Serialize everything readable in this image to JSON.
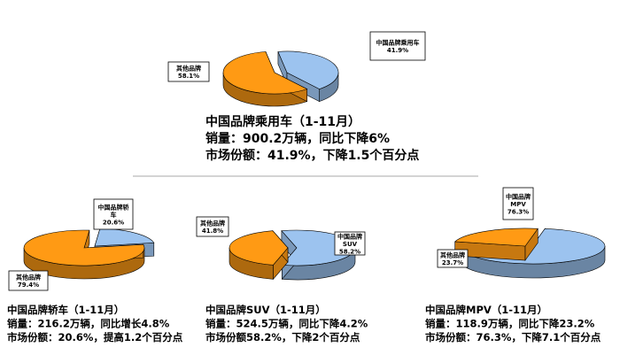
{
  "chart_data": [
    {
      "type": "pie",
      "categories": [
        "中国品牌乘用车",
        "其他品牌"
      ],
      "values": [
        41.9,
        58.1
      ],
      "data_labels": [
        "41.9%",
        "58.1%"
      ],
      "unit": "%",
      "colors": [
        "#9cc3ef",
        "#ff9a14"
      ],
      "caption": [
        "中国品牌乘用车（1-11月）",
        "销量：900.2万辆，同比下降6%",
        "市场份额：41.9%，下降1.5个百分点"
      ]
    },
    {
      "type": "pie",
      "categories": [
        "中国品牌轿车",
        "其他品牌"
      ],
      "values": [
        20.6,
        79.4
      ],
      "data_labels": [
        "20.6%",
        "79.4%"
      ],
      "unit": "%",
      "colors": [
        "#9cc3ef",
        "#ff9a14"
      ],
      "caption": [
        "中国品牌轿车（1-11月）",
        "销量：216.2万辆，同比增长4.8%",
        "市场份额：20.6%，提高1.2个百分点"
      ]
    },
    {
      "type": "pie",
      "categories": [
        "中国品牌SUV",
        "其他品牌"
      ],
      "values": [
        58.2,
        41.8
      ],
      "data_labels": [
        "58.2%",
        "41.8%"
      ],
      "unit": "%",
      "colors": [
        "#9cc3ef",
        "#ff9a14"
      ],
      "caption": [
        "中国品牌SUV（1-11月）",
        "销量：524.5万辆，同比下降4.2%",
        "市场份额58.2%，下降2个百分点"
      ]
    },
    {
      "type": "pie",
      "categories": [
        "中国品牌MPV",
        "其他品牌"
      ],
      "values": [
        76.3,
        23.7
      ],
      "data_labels": [
        "76.3%",
        "23.7%"
      ],
      "unit": "%",
      "colors": [
        "#9cc3ef",
        "#ff9a14"
      ],
      "caption": [
        "中国品牌MPV（1-11月）",
        "销量：118.9万辆，同比下降23.2%",
        "市场份额：76.3%，下降7.1个百分点"
      ]
    }
  ]
}
